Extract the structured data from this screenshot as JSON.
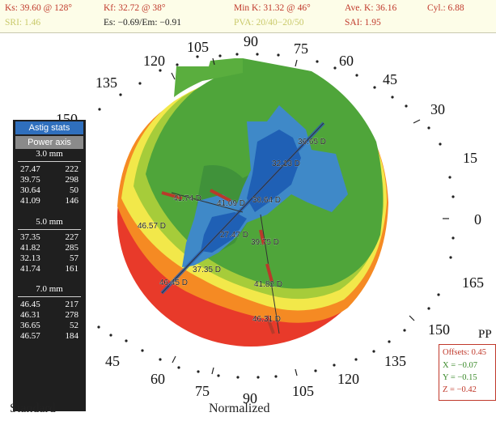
{
  "header": {
    "ks": "Ks: 39.60 @ 128°",
    "kf": "Kf: 32.72 @ 38°",
    "min_k": "Min K: 31.32 @ 46°",
    "ave_k": "Ave. K: 36.16",
    "cyl": "Cyl.: 6.88",
    "sri": "SRI: 1.46",
    "es_em": "Es: −0.69/Em: −0.91",
    "pva": "PVA: 20/40−20/50",
    "sai": "SAI: 1.95"
  },
  "sidebar": {
    "astig_button": "Astig stats",
    "power_button": "Power axis",
    "sections": [
      {
        "title": "3.0 mm",
        "rows": [
          {
            "k": "27.47",
            "axis": "222"
          },
          {
            "k": "39.75",
            "axis": "298"
          },
          {
            "k": "30.64",
            "axis": "50"
          },
          {
            "k": "41.09",
            "axis": "146"
          }
        ]
      },
      {
        "title": "5.0 mm",
        "rows": [
          {
            "k": "37.35",
            "axis": "227"
          },
          {
            "k": "41.82",
            "axis": "285"
          },
          {
            "k": "32.13",
            "axis": "57"
          },
          {
            "k": "41.74",
            "axis": "161"
          }
        ]
      },
      {
        "title": "7.0 mm",
        "rows": [
          {
            "k": "46.45",
            "axis": "217"
          },
          {
            "k": "46.31",
            "axis": "278"
          },
          {
            "k": "36.65",
            "axis": "52"
          },
          {
            "k": "46.57",
            "axis": "184"
          }
        ]
      }
    ]
  },
  "map": {
    "degree_labels": [
      "150",
      "135",
      "120",
      "105",
      "90",
      "75",
      "60",
      "45",
      "30",
      "15",
      "0",
      "165",
      "150",
      "135",
      "120",
      "105",
      "90",
      "75",
      "60",
      "45"
    ],
    "power_labels": [
      "36.65 D",
      "32.13 D",
      "30.64 D",
      "41.09 D",
      "41.74 D",
      "46.57 D",
      "27.47 D",
      "39.75 D",
      "37.35 D",
      "46.45 D",
      "41.82 D",
      "46.31 D"
    ],
    "colors": {
      "red": "#e83a2a",
      "orange": "#f58a23",
      "yellow": "#f2e84a",
      "lightgreen": "#a6cc3a",
      "green": "#4fa53a",
      "darkgreen": "#3c8d3b",
      "lightblue": "#3f89c8",
      "blue": "#1f60b5"
    }
  },
  "offsets": {
    "pp": "PP",
    "offsets": "Offsets: 0.45",
    "x": "X = −0.07",
    "y": "Y = −0.15",
    "z": "Z = −0.42"
  },
  "footer": {
    "standard": "Standard",
    "normalized": "Normalized"
  }
}
